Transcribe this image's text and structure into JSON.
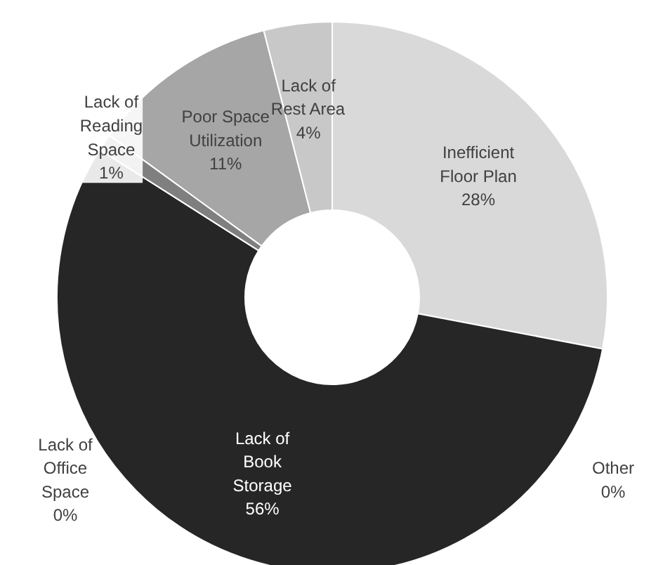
{
  "chart_data": {
    "type": "donut",
    "categories": [
      "Inefficient Floor Plan",
      "Other",
      "Lack of Book Storage",
      "Lack of Office Space",
      "Lack of Reading Space",
      "Poor Space Utilization",
      "Lack of Rest Area"
    ],
    "values": [
      28,
      0,
      56,
      0,
      1,
      11,
      4
    ],
    "value_labels": [
      "28%",
      "0%",
      "56%",
      "0%",
      "1%",
      "11%",
      "4%"
    ],
    "colors": [
      "#d9d9d9",
      "#bfbfbf",
      "#262626",
      "#595959",
      "#7f7f7f",
      "#a6a6a6",
      "#c8c8c8"
    ],
    "legend": false
  }
}
